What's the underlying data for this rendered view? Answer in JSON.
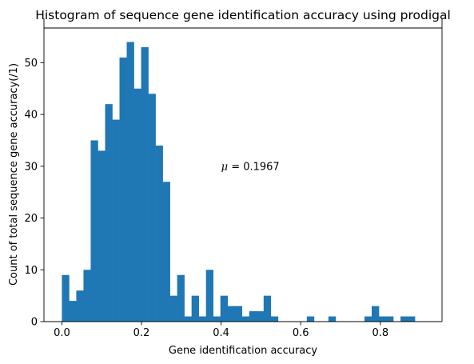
{
  "chart_data": {
    "type": "bar",
    "title": "Histogram of sequence gene identification accuracy using prodigal",
    "xlabel": "Gene identification accuracy",
    "ylabel": "Count of total sequence gene accuracy(/1)",
    "xlim": [
      -0.045,
      0.955
    ],
    "ylim": [
      0,
      56.7
    ],
    "x_ticks": [
      0.0,
      0.2,
      0.4,
      0.6,
      0.8
    ],
    "x_tick_labels": [
      "0.0",
      "0.2",
      "0.4",
      "0.6",
      "0.8"
    ],
    "y_ticks": [
      0,
      10,
      20,
      30,
      40,
      50
    ],
    "y_tick_labels": [
      "0",
      "10",
      "20",
      "30",
      "40",
      "50"
    ],
    "bin_start": 0.0,
    "bin_width": 0.0181,
    "values": [
      9,
      4,
      6,
      10,
      35,
      33,
      42,
      39,
      51,
      54,
      45,
      53,
      44,
      34,
      27,
      5,
      9,
      1,
      5,
      1,
      10,
      1,
      5,
      3,
      3,
      1,
      2,
      2,
      5,
      1,
      0,
      0,
      0,
      0,
      1,
      0,
      0,
      1,
      0,
      0,
      0,
      0,
      1,
      3,
      1,
      1,
      0,
      1,
      1,
      0
    ],
    "bar_color": "#1f77b4",
    "grid": false,
    "annotation": {
      "symbol": "μ",
      "text": " = 0.1967",
      "x": 0.4,
      "y": 30
    }
  }
}
